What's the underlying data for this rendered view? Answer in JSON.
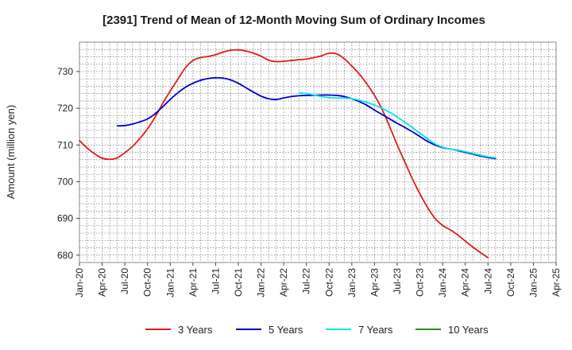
{
  "chart_data": {
    "type": "line",
    "title": "[2391]  Trend of Mean of 12-Month Moving Sum of Ordinary Incomes",
    "xlabel": "",
    "ylabel": "Amount (million yen)",
    "x_tick_labels": [
      "Jan-20",
      "Apr-20",
      "Jul-20",
      "Oct-20",
      "Jan-21",
      "Apr-21",
      "Jul-21",
      "Oct-21",
      "Jan-22",
      "Apr-22",
      "Jul-22",
      "Oct-22",
      "Jan-23",
      "Apr-23",
      "Jul-23",
      "Oct-23",
      "Jan-24",
      "Apr-24",
      "Jul-24",
      "Oct-24",
      "Jan-25",
      "Apr-25"
    ],
    "y_ticks": [
      680,
      690,
      700,
      710,
      720,
      730
    ],
    "y_tick_labels": [
      "680",
      "690",
      "700",
      "710",
      "720",
      "730"
    ],
    "ylim": [
      678,
      738
    ],
    "x_range_months": [
      0,
      63
    ],
    "grid": true,
    "legend_position": "bottom",
    "series": [
      {
        "name": "3 Years",
        "color": "#e31a1c",
        "x": [
          0,
          1,
          2,
          3,
          4,
          5,
          6,
          7,
          8,
          9,
          10,
          11,
          12,
          13,
          14,
          15,
          16,
          17,
          18,
          19,
          20,
          21,
          22,
          23,
          24,
          25,
          26,
          27,
          28,
          29,
          30,
          31,
          32,
          33,
          34,
          35,
          36,
          37,
          38,
          39,
          40,
          41,
          42,
          43,
          44,
          45,
          46,
          47,
          48,
          49,
          50,
          51,
          52,
          53,
          54,
          55,
          56,
          57,
          58,
          59,
          60
        ],
        "values": [
          711.2,
          709.2,
          707.6,
          706.4,
          706.1,
          706.5,
          707.9,
          709.6,
          711.8,
          714.4,
          717.6,
          721.3,
          724.7,
          727.9,
          731.0,
          733.0,
          733.8,
          734.1,
          734.6,
          735.3,
          735.8,
          735.9,
          735.6,
          735.0,
          734.2,
          733.1,
          732.7,
          732.8,
          733.0,
          733.2,
          733.4,
          733.8,
          734.3,
          735.0,
          734.8,
          733.5,
          731.5,
          729.3,
          726.6,
          723.5,
          719.7,
          715.0,
          710.0,
          705.4,
          700.8,
          696.7,
          693.0,
          690.0,
          688.1,
          686.9,
          685.5,
          683.8,
          682.2,
          680.7,
          679.3,
          null,
          null,
          null,
          null,
          null,
          null
        ]
      },
      {
        "name": "5 Years",
        "color": "#0000cc",
        "x": [
          5,
          6,
          7,
          8,
          9,
          10,
          11,
          12,
          13,
          14,
          15,
          16,
          17,
          18,
          19,
          20,
          21,
          22,
          23,
          24,
          25,
          26,
          27,
          28,
          29,
          30,
          31,
          32,
          33,
          34,
          35,
          36,
          37,
          38,
          39,
          40,
          41,
          42,
          43,
          44,
          45,
          46,
          47,
          48,
          49,
          50,
          51,
          52,
          53,
          54,
          55,
          56,
          57,
          58,
          59,
          60
        ],
        "values": [
          715.2,
          715.3,
          715.7,
          716.3,
          717.1,
          718.5,
          720.4,
          722.4,
          724.2,
          725.7,
          726.8,
          727.6,
          728.1,
          728.3,
          728.2,
          727.7,
          726.8,
          725.6,
          724.4,
          723.3,
          722.6,
          722.4,
          722.8,
          723.2,
          723.4,
          723.5,
          723.5,
          723.6,
          723.6,
          723.5,
          723.2,
          722.6,
          721.8,
          720.8,
          719.5,
          718.3,
          717.1,
          715.9,
          714.8,
          713.6,
          712.3,
          711.0,
          710.0,
          709.3,
          708.9,
          708.5,
          708.0,
          707.5,
          707.0,
          706.6,
          706.3,
          null,
          null,
          null,
          null,
          null
        ]
      },
      {
        "name": "7 Years",
        "color": "#00e5ee",
        "x": [
          29,
          30,
          31,
          32,
          33,
          34,
          35,
          36,
          37,
          38,
          39,
          40,
          41,
          42,
          43,
          44,
          45,
          46,
          47,
          48,
          49,
          50,
          51,
          52,
          53,
          54,
          55
        ],
        "values": [
          724.2,
          724.0,
          723.6,
          723.2,
          722.9,
          722.8,
          722.8,
          722.6,
          722.2,
          721.6,
          720.9,
          720.0,
          718.9,
          717.6,
          716.2,
          714.8,
          713.2,
          711.7,
          710.3,
          709.4,
          708.9,
          708.6,
          708.2,
          707.7,
          707.2,
          706.8,
          706.5
        ]
      },
      {
        "name": "10 Years",
        "color": "#2e8b2e",
        "x": [],
        "values": []
      }
    ]
  }
}
